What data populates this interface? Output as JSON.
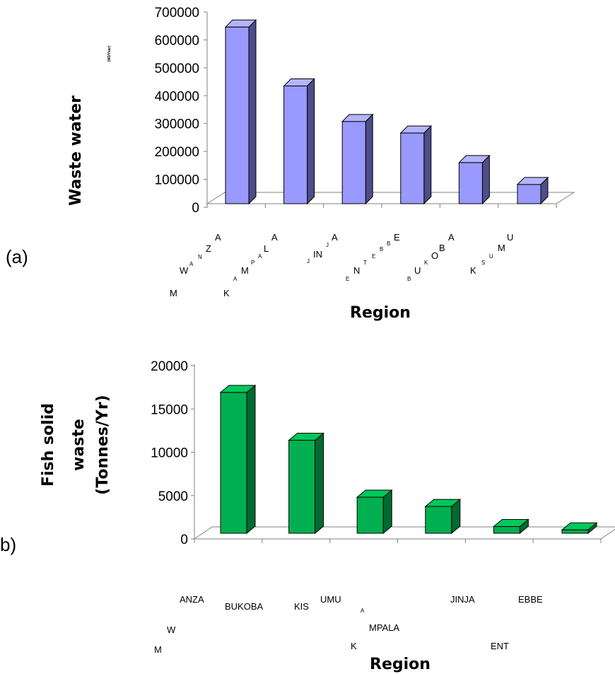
{
  "panels": {
    "a_label": "(a)",
    "b_label": "b)"
  },
  "chart_data": [
    {
      "type": "bar",
      "categories": [
        "MWANZA",
        "KAMPALA",
        "JINJA",
        "ENTEBBE",
        "BUKOBA",
        "KSUMU"
      ],
      "values": [
        645000,
        430000,
        300000,
        258000,
        150000,
        70000
      ],
      "ylabel": "Waste water",
      "ylabel_unit": "(M3/Year)",
      "xlabel": "Region",
      "ylim": [
        0,
        700000
      ],
      "yticks": [
        "0",
        "100000",
        "200000",
        "300000",
        "400000",
        "500000",
        "600000",
        "700000"
      ],
      "colors": {
        "front": "#9999ff",
        "side": "#4d4d88",
        "top": "#b4b4ff"
      },
      "tick_text": [
        [
          "M",
          "W",
          "A",
          "N",
          "Z",
          "A"
        ],
        [
          "K",
          "A",
          "M",
          "P",
          "A",
          "L",
          "A"
        ],
        [
          "J",
          "IN",
          "J",
          "A"
        ],
        [
          "E",
          "N",
          "T",
          "E",
          "B",
          "B",
          "E"
        ],
        [
          "B",
          "U",
          "K",
          "O",
          "B",
          "A"
        ],
        [
          "K",
          "S",
          "U",
          "M",
          "U"
        ]
      ]
    },
    {
      "type": "bar",
      "categories": [
        "MWANZA",
        "BUKOBA",
        "KISUMU",
        "KAMPALA",
        "JINJA",
        "ENTEBBE"
      ],
      "values": [
        16800,
        11100,
        4300,
        3200,
        800,
        400
      ],
      "ylabel_lines": [
        "Fish solid",
        "waste",
        "(Tonnes/Yr)"
      ],
      "xlabel": "Region",
      "ylim": [
        0,
        20000
      ],
      "yticks": [
        "0",
        "5000",
        "10000",
        "15000",
        "20000"
      ],
      "colors": {
        "front": "#00b050",
        "side": "#006a30",
        "top": "#00c85c"
      },
      "tick_text": [
        "M",
        "W",
        "ANZA",
        "BUKOBA",
        "KIS",
        "UMU",
        "A",
        "MPALA",
        "K",
        "JINJA",
        "ENT",
        "EBBE"
      ]
    }
  ]
}
